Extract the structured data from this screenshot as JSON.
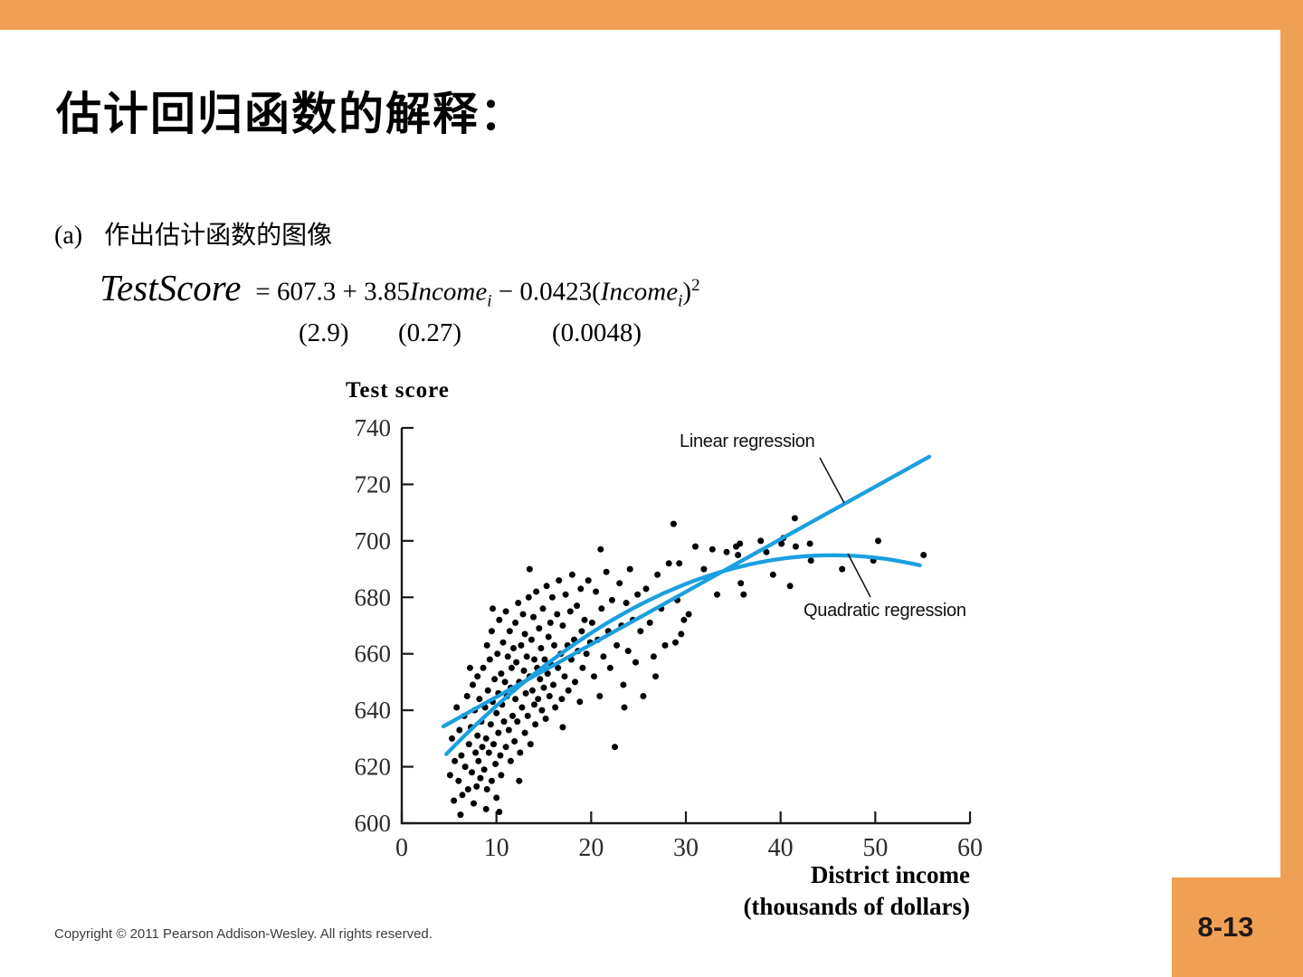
{
  "slide": {
    "title": "估计回归函数的解释：",
    "item_label": "(a)",
    "item_text": "作出估计函数的图像",
    "footer": "Copyright © 2011 Pearson Addison-Wesley. All rights reserved.",
    "page_number": "8-13"
  },
  "equation": {
    "lhs": "TestScore",
    "rhs_pre": "= 607.3 + 3.85",
    "var1": "Income",
    "sub1": "i",
    "mid": " − 0.0423(",
    "var2": "Income",
    "sub2": "i",
    "close": ")",
    "sup": "2",
    "se1": "(2.9)",
    "se2": "(0.27)",
    "se3": "(0.0048)"
  },
  "colors": {
    "accent_orange": "#F0A055",
    "regression_blue": "#1B9FE0",
    "dot_black": "#000000",
    "axis_black": "#1a1a1a",
    "tick_text": "#2b2b2b"
  },
  "chart_data": {
    "type": "scatter",
    "ylabel": "Test score",
    "xlabel": "District income",
    "xlabel_sub": "(thousands of dollars)",
    "xlim": [
      0,
      60
    ],
    "ylim": [
      600,
      740
    ],
    "x_ticks": [
      0,
      10,
      20,
      30,
      40,
      50,
      60
    ],
    "y_ticks": [
      600,
      620,
      640,
      660,
      680,
      700,
      720,
      740
    ],
    "grid": false,
    "annotations": [
      {
        "label": "Linear regression",
        "series": "linear"
      },
      {
        "label": "Quadratic regression",
        "series": "quadratic"
      }
    ],
    "linear_regression_line": {
      "x_start": 4.4,
      "y_start": 634.3,
      "x_end": 55.7,
      "y_end": 729.8
    },
    "quadratic_regression_curve": {
      "intercept": 607.3,
      "b1": 3.85,
      "b2": -0.0423,
      "x_start": 4.7,
      "x_end": 55.5
    },
    "points": [
      [
        5.1,
        617
      ],
      [
        5.3,
        630
      ],
      [
        5.5,
        608
      ],
      [
        5.6,
        622
      ],
      [
        5.8,
        641
      ],
      [
        6.0,
        615
      ],
      [
        6.1,
        633
      ],
      [
        6.3,
        624
      ],
      [
        6.4,
        610
      ],
      [
        6.6,
        638
      ],
      [
        6.7,
        620
      ],
      [
        6.9,
        645
      ],
      [
        7.0,
        612
      ],
      [
        7.1,
        628
      ],
      [
        7.3,
        634
      ],
      [
        7.4,
        618
      ],
      [
        7.5,
        649
      ],
      [
        7.6,
        607
      ],
      [
        7.7,
        640
      ],
      [
        7.8,
        625
      ],
      [
        7.9,
        613
      ],
      [
        8.0,
        652
      ],
      [
        8.0,
        631
      ],
      [
        8.1,
        622
      ],
      [
        8.2,
        644
      ],
      [
        8.3,
        616
      ],
      [
        8.4,
        636
      ],
      [
        8.5,
        627
      ],
      [
        8.6,
        655
      ],
      [
        8.7,
        619
      ],
      [
        8.8,
        641
      ],
      [
        8.9,
        630
      ],
      [
        9.0,
        663
      ],
      [
        9.0,
        612
      ],
      [
        9.1,
        647
      ],
      [
        9.2,
        625
      ],
      [
        9.3,
        658
      ],
      [
        9.4,
        635
      ],
      [
        9.5,
        615
      ],
      [
        9.5,
        668
      ],
      [
        9.6,
        643
      ],
      [
        9.7,
        628
      ],
      [
        9.8,
        651
      ],
      [
        9.9,
        621
      ],
      [
        10.0,
        639
      ],
      [
        10.0,
        609
      ],
      [
        10.1,
        660
      ],
      [
        10.2,
        646
      ],
      [
        10.2,
        632
      ],
      [
        10.3,
        672
      ],
      [
        10.4,
        624
      ],
      [
        10.5,
        653
      ],
      [
        10.5,
        617
      ],
      [
        10.6,
        642
      ],
      [
        10.7,
        664
      ],
      [
        10.8,
        636
      ],
      [
        10.9,
        650
      ],
      [
        11.0,
        627
      ],
      [
        11.0,
        675
      ],
      [
        11.1,
        645
      ],
      [
        11.2,
        659
      ],
      [
        11.3,
        633
      ],
      [
        11.4,
        668
      ],
      [
        11.5,
        622
      ],
      [
        11.5,
        648
      ],
      [
        11.6,
        655
      ],
      [
        11.7,
        638
      ],
      [
        11.8,
        662
      ],
      [
        11.9,
        629
      ],
      [
        12.0,
        671
      ],
      [
        12.0,
        644
      ],
      [
        12.1,
        657
      ],
      [
        12.2,
        636
      ],
      [
        12.3,
        678
      ],
      [
        12.4,
        650
      ],
      [
        12.5,
        625
      ],
      [
        12.6,
        663
      ],
      [
        12.7,
        641
      ],
      [
        12.8,
        674
      ],
      [
        12.9,
        654
      ],
      [
        13.0,
        632
      ],
      [
        13.0,
        667
      ],
      [
        13.1,
        646
      ],
      [
        13.2,
        659
      ],
      [
        13.3,
        638
      ],
      [
        13.4,
        680
      ],
      [
        13.5,
        652
      ],
      [
        13.6,
        628
      ],
      [
        13.7,
        665
      ],
      [
        13.8,
        647
      ],
      [
        13.9,
        673
      ],
      [
        14.0,
        642
      ],
      [
        14.0,
        658
      ],
      [
        14.1,
        635
      ],
      [
        14.2,
        682
      ],
      [
        14.3,
        655
      ],
      [
        14.4,
        644
      ],
      [
        14.5,
        669
      ],
      [
        14.6,
        651
      ],
      [
        14.7,
        662
      ],
      [
        14.8,
        640
      ],
      [
        14.9,
        676
      ],
      [
        15.0,
        648
      ],
      [
        15.1,
        658
      ],
      [
        15.2,
        637
      ],
      [
        15.3,
        684
      ],
      [
        15.4,
        653
      ],
      [
        15.5,
        666
      ],
      [
        15.6,
        645
      ],
      [
        15.7,
        671
      ],
      [
        15.8,
        656
      ],
      [
        15.9,
        680
      ],
      [
        16.0,
        649
      ],
      [
        16.1,
        663
      ],
      [
        16.2,
        641
      ],
      [
        16.4,
        674
      ],
      [
        16.5,
        655
      ],
      [
        16.6,
        686
      ],
      [
        16.8,
        660
      ],
      [
        16.9,
        644
      ],
      [
        17.0,
        670
      ],
      [
        17.2,
        652
      ],
      [
        17.3,
        681
      ],
      [
        17.5,
        663
      ],
      [
        17.6,
        647
      ],
      [
        17.8,
        675
      ],
      [
        17.9,
        658
      ],
      [
        18.0,
        688
      ],
      [
        18.2,
        665
      ],
      [
        18.3,
        650
      ],
      [
        18.5,
        677
      ],
      [
        18.6,
        661
      ],
      [
        18.8,
        643
      ],
      [
        18.9,
        683
      ],
      [
        19.0,
        668
      ],
      [
        19.1,
        655
      ],
      [
        19.3,
        672
      ],
      [
        19.5,
        660
      ],
      [
        19.7,
        686
      ],
      [
        19.9,
        664
      ],
      [
        20.1,
        671
      ],
      [
        20.3,
        652
      ],
      [
        20.5,
        682
      ],
      [
        20.7,
        665
      ],
      [
        20.9,
        645
      ],
      [
        21.1,
        676
      ],
      [
        21.3,
        659
      ],
      [
        21.6,
        689
      ],
      [
        21.8,
        668
      ],
      [
        22.0,
        655
      ],
      [
        22.2,
        679
      ],
      [
        22.5,
        627
      ],
      [
        22.7,
        663
      ],
      [
        23.0,
        685
      ],
      [
        23.2,
        670
      ],
      [
        23.4,
        649
      ],
      [
        23.7,
        678
      ],
      [
        23.9,
        661
      ],
      [
        24.1,
        690
      ],
      [
        24.4,
        672
      ],
      [
        24.7,
        657
      ],
      [
        24.9,
        681
      ],
      [
        25.2,
        668
      ],
      [
        25.5,
        645
      ],
      [
        25.8,
        683
      ],
      [
        26.2,
        671
      ],
      [
        26.6,
        659
      ],
      [
        27.0,
        688
      ],
      [
        27.4,
        676
      ],
      [
        27.8,
        663
      ],
      [
        28.2,
        692
      ],
      [
        28.7,
        706
      ],
      [
        29.1,
        679
      ],
      [
        29.3,
        692
      ],
      [
        29.5,
        667
      ],
      [
        29.8,
        672
      ],
      [
        30.3,
        674
      ],
      [
        31.0,
        698
      ],
      [
        31.9,
        690
      ],
      [
        32.8,
        697
      ],
      [
        33.3,
        681
      ],
      [
        34.3,
        696
      ],
      [
        35.3,
        698
      ],
      [
        35.5,
        695
      ],
      [
        35.7,
        699
      ],
      [
        35.8,
        685
      ],
      [
        36.1,
        681
      ],
      [
        37.9,
        700
      ],
      [
        38.5,
        696
      ],
      [
        39.2,
        688
      ],
      [
        40.1,
        699
      ],
      [
        40.3,
        701
      ],
      [
        41.0,
        684
      ],
      [
        41.5,
        708
      ],
      [
        41.6,
        698
      ],
      [
        43.1,
        699
      ],
      [
        43.2,
        693
      ],
      [
        46.5,
        690
      ],
      [
        49.8,
        693
      ],
      [
        50.3,
        700
      ],
      [
        55.1,
        695
      ],
      [
        6.2,
        603
      ],
      [
        8.9,
        605
      ],
      [
        10.3,
        604
      ],
      [
        12.4,
        615
      ],
      [
        7.2,
        655
      ],
      [
        9.6,
        676
      ],
      [
        28.9,
        664
      ],
      [
        26.8,
        652
      ],
      [
        21.0,
        697
      ],
      [
        13.5,
        690
      ],
      [
        17.0,
        634
      ],
      [
        23.5,
        641
      ]
    ]
  }
}
